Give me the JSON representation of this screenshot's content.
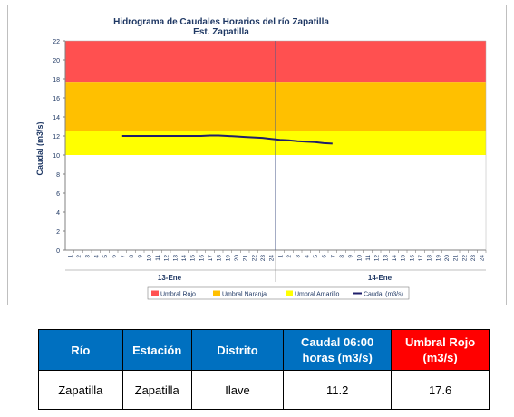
{
  "chart_data": {
    "type": "line",
    "title": "Hidrograma de Caudales Horarios del río Zapatilla",
    "subtitle": "Est. Zapatilla",
    "ylabel": "Caudal  (m3/s)",
    "ylim": [
      0,
      22
    ],
    "yticks": [
      0,
      2,
      4,
      6,
      8,
      10,
      12,
      14,
      16,
      18,
      20,
      22
    ],
    "hour_ticks": [
      "1",
      "2",
      "3",
      "4",
      "5",
      "6",
      "7",
      "8",
      "9",
      "10",
      "11",
      "12",
      "13",
      "14",
      "15",
      "16",
      "17",
      "18",
      "19",
      "20",
      "21",
      "22",
      "23",
      "24",
      "1",
      "2",
      "3",
      "4",
      "5",
      "6",
      "7",
      "8",
      "9",
      "10",
      "11",
      "12",
      "13",
      "14",
      "15",
      "16",
      "17",
      "18",
      "19",
      "20",
      "21",
      "22",
      "23",
      "24"
    ],
    "day_labels": [
      "13-Ene",
      "14-Ene"
    ],
    "bands": [
      {
        "name": "Umbral Rojo",
        "from": 17.6,
        "to": 22,
        "color": "#ff5050"
      },
      {
        "name": "Umbral Naranja",
        "from": 12.5,
        "to": 17.6,
        "color": "#ffc000"
      },
      {
        "name": "Umbral Amarillo",
        "from": 10,
        "to": 12.5,
        "color": "#ffff00"
      }
    ],
    "series": [
      {
        "name": "Caudal (m3/s)",
        "color": "#1f1f6b",
        "x": [
          7,
          8,
          9,
          10,
          11,
          12,
          13,
          14,
          15,
          16,
          17,
          18,
          19,
          20,
          21,
          22,
          23,
          24,
          25,
          26,
          27,
          28,
          29,
          30,
          31
        ],
        "values": [
          12.0,
          12.0,
          12.0,
          12.0,
          12.0,
          12.0,
          12.0,
          12.0,
          12.0,
          12.0,
          12.05,
          12.05,
          12.0,
          11.95,
          11.9,
          11.85,
          11.8,
          11.7,
          11.6,
          11.55,
          11.45,
          11.4,
          11.35,
          11.25,
          11.2
        ]
      }
    ],
    "legend": {
      "placement": "bottom",
      "entries": [
        "Umbral Rojo",
        "Umbral Naranja",
        "Umbral Amarillo",
        "Caudal (m3/s)"
      ]
    }
  },
  "table": {
    "headers": [
      "Río",
      "Estación",
      "Distrito",
      "Caudal 06:00 horas (m3/s)",
      "Umbral Rojo (m3/s)"
    ],
    "row": [
      "Zapatilla",
      "Zapatilla",
      "Ilave",
      "11.2",
      "17.6"
    ]
  },
  "colors": {
    "header_blue": "#0070c0",
    "header_red": "#ff0000"
  }
}
